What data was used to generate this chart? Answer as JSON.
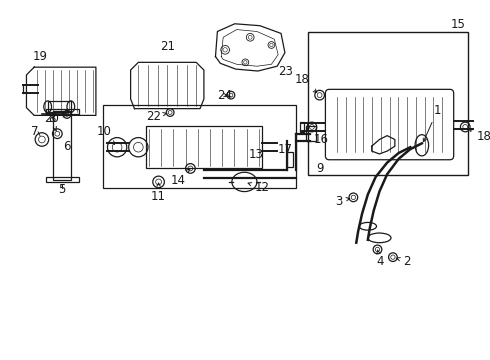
{
  "bg_color": "#ffffff",
  "line_color": "#1a1a1a",
  "fig_width": 4.9,
  "fig_height": 3.6,
  "dpi": 100,
  "fs": 8.5,
  "alw": 0.7,
  "lw": 0.9
}
